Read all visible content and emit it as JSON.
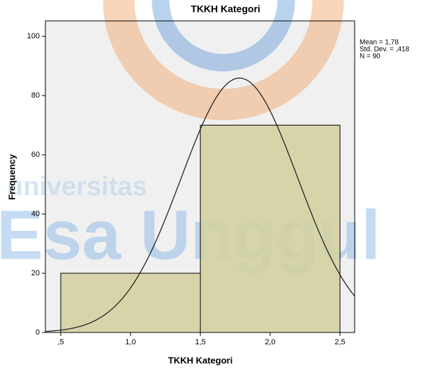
{
  "chart_data": {
    "type": "histogram",
    "title": "TKKH Kategori",
    "x_label": "TKKH Kategori",
    "y_label": "Frequency",
    "bins": [
      0.5,
      1.5,
      2.5
    ],
    "values": [
      20,
      70
    ],
    "color": "#d4cf9e",
    "xlim": [
      0.39,
      2.605
    ],
    "ylim": [
      0,
      105.2
    ],
    "xticks": [
      {
        "value": 0.5,
        "label": ",5"
      },
      {
        "value": 1.0,
        "label": "1,0"
      },
      {
        "value": 1.5,
        "label": "1,5"
      },
      {
        "value": 2.0,
        "label": "2,0"
      },
      {
        "value": 2.5,
        "label": "2,5"
      }
    ],
    "yticks": [
      0,
      20,
      40,
      60,
      80,
      100
    ],
    "stats": [
      {
        "label": "Mean = 1,78",
        "value": 1.78
      },
      {
        "label": "Std. Dev. = ,418",
        "value": 0.418
      },
      {
        "label": "N = 90",
        "value": 90
      }
    ],
    "watermark": [
      "universitas",
      "Esa Unggul"
    ]
  }
}
